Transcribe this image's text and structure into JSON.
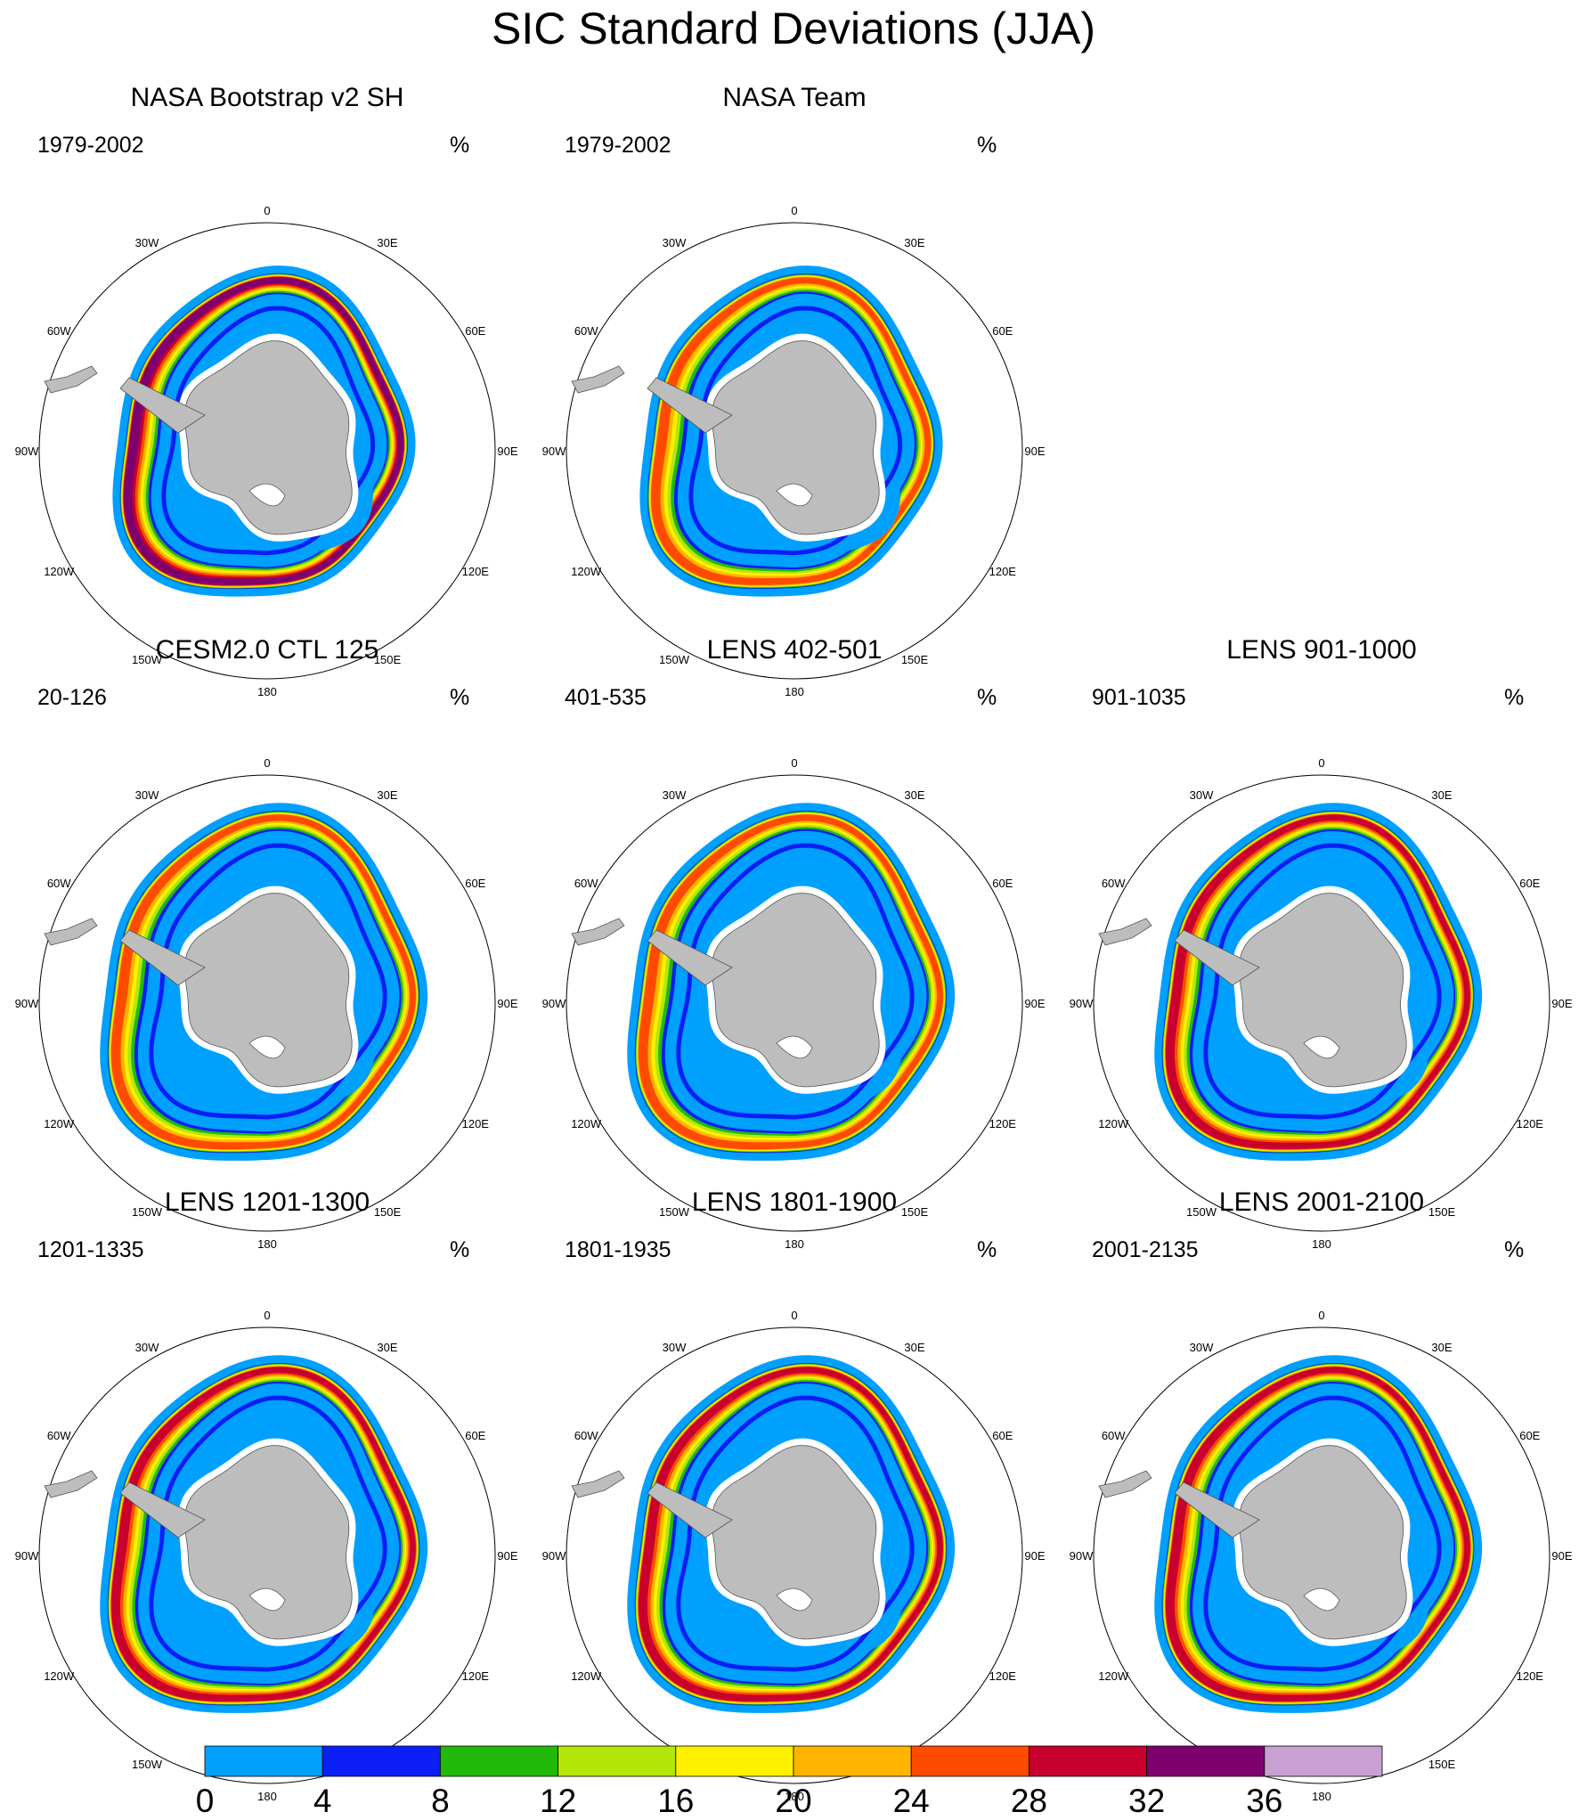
{
  "title": "SIC Standard Deviations (JJA)",
  "unit_label": "%",
  "lon_labels": [
    "0",
    "30E",
    "60E",
    "90E",
    "120E",
    "150E",
    "180",
    "150W",
    "120W",
    "90W",
    "60W",
    "30W"
  ],
  "colors": {
    "land": "#bdbdbd",
    "ocean": "#ffffff",
    "bin_colors": [
      "#00a0ff",
      "#0a1ef5",
      "#22b90d",
      "#b4e60a",
      "#fff000",
      "#ffb400",
      "#ff4b00",
      "#c8002d",
      "#7d006e",
      "#c8a0d2"
    ]
  },
  "chart_data": {
    "type": "heatmap",
    "title": "SIC Standard Deviations (JJA)",
    "projection": "south polar stereographic",
    "colorbar": {
      "units": "%",
      "levels": [
        0,
        4,
        8,
        12,
        16,
        20,
        24,
        28,
        32,
        36
      ],
      "tick_labels": [
        "0",
        "4",
        "8",
        "12",
        "16",
        "20",
        "24",
        "28",
        "32",
        "36"
      ]
    },
    "panels": [
      {
        "id": "p1",
        "title": "NASA Bootstrap v2 SH",
        "years": "1979-2002",
        "max_bin": 8,
        "variant": "obs_bootstrap"
      },
      {
        "id": "p2",
        "title": "NASA Team",
        "years": "1979-2002",
        "max_bin": 6,
        "variant": "obs_team"
      },
      {
        "id": "p3",
        "title": "CESM2.0 CTL 125",
        "years": "20-126",
        "max_bin": 6,
        "variant": "model"
      },
      {
        "id": "p4",
        "title": "LENS 402-501",
        "years": "401-535",
        "max_bin": 6,
        "variant": "model"
      },
      {
        "id": "p5",
        "title": "LENS 901-1000",
        "years": "901-1035",
        "max_bin": 7,
        "variant": "model"
      },
      {
        "id": "p6",
        "title": "LENS 1201-1300",
        "years": "1201-1335",
        "max_bin": 7,
        "variant": "model"
      },
      {
        "id": "p7",
        "title": "LENS 1801-1900",
        "years": "1801-1935",
        "max_bin": 7,
        "variant": "model"
      },
      {
        "id": "p8",
        "title": "LENS 2001-2100",
        "years": "2001-2135",
        "max_bin": 7,
        "variant": "model"
      }
    ]
  }
}
